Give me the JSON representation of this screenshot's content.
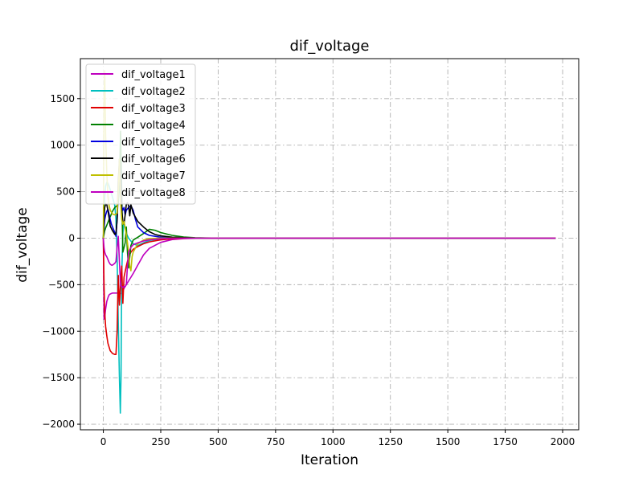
{
  "chart_data": {
    "type": "line",
    "title": "dif_voltage",
    "xlabel": "Iteration",
    "ylabel": "dif_voltage",
    "xlim": [
      -100,
      2070
    ],
    "ylim": [
      -2060,
      1930
    ],
    "xticks": [
      0,
      250,
      500,
      750,
      1000,
      1250,
      1500,
      1750,
      2000
    ],
    "yticks": [
      -2000,
      -1500,
      -1000,
      -500,
      0,
      500,
      1000,
      1500
    ],
    "grid": true,
    "legend_position": "top-left",
    "series": [
      {
        "name": "dif_voltage1",
        "color": "#bf00bf",
        "x": [
          0,
          3,
          6,
          10,
          15,
          20,
          25,
          30,
          40,
          50,
          60,
          70,
          80,
          90,
          100,
          110,
          120,
          130,
          150,
          175,
          200,
          250,
          300,
          350,
          400,
          500,
          600,
          1000,
          1500,
          1970
        ],
        "y": [
          0,
          -870,
          -850,
          -760,
          -680,
          -640,
          -610,
          -600,
          -590,
          -590,
          -590,
          -595,
          -595,
          -540,
          -500,
          -460,
          -420,
          -380,
          -290,
          -180,
          -110,
          -45,
          -15,
          -5,
          -2,
          0,
          0,
          0,
          0,
          0
        ]
      },
      {
        "name": "dif_voltage2",
        "color": "#00bfbf",
        "x": [
          0,
          3,
          6,
          10,
          15,
          20,
          25,
          30,
          40,
          50,
          55,
          60,
          65,
          70,
          74,
          77,
          80,
          85,
          90,
          95,
          100,
          110,
          120,
          130,
          150,
          175,
          200,
          250,
          300,
          350,
          400,
          500,
          1000,
          1500,
          1970
        ],
        "y": [
          0,
          200,
          450,
          560,
          600,
          590,
          560,
          520,
          440,
          350,
          200,
          -200,
          -900,
          -1500,
          -1880,
          -1500,
          -400,
          50,
          180,
          100,
          50,
          0,
          -30,
          -60,
          -80,
          -50,
          -25,
          -8,
          -2,
          0,
          0,
          0,
          0,
          0,
          0
        ]
      },
      {
        "name": "dif_voltage3",
        "color": "#e00000",
        "x": [
          0,
          3,
          6,
          10,
          15,
          20,
          30,
          40,
          50,
          55,
          60,
          65,
          70,
          75,
          80,
          85,
          90,
          95,
          100,
          105,
          110,
          120,
          130,
          150,
          175,
          200,
          250,
          300,
          350,
          400,
          500,
          1000,
          1500,
          1970
        ],
        "y": [
          0,
          -500,
          -800,
          -950,
          -1050,
          -1130,
          -1210,
          -1240,
          -1250,
          -1250,
          -1000,
          -400,
          -720,
          -500,
          -300,
          -700,
          -420,
          -360,
          -300,
          -250,
          -200,
          -150,
          -120,
          -90,
          -60,
          -40,
          -18,
          -7,
          -3,
          0,
          0,
          0,
          0,
          0
        ]
      },
      {
        "name": "dif_voltage4",
        "color": "#008000",
        "x": [
          0,
          3,
          6,
          10,
          15,
          20,
          30,
          40,
          50,
          60,
          65,
          70,
          75,
          80,
          85,
          90,
          95,
          100,
          105,
          110,
          115,
          120,
          130,
          150,
          175,
          200,
          225,
          250,
          300,
          350,
          400,
          500,
          1000,
          1500,
          1970
        ],
        "y": [
          0,
          40,
          80,
          110,
          140,
          170,
          230,
          290,
          330,
          350,
          380,
          550,
          1150,
          500,
          -150,
          -100,
          -50,
          120,
          -150,
          -320,
          -200,
          -80,
          -20,
          10,
          50,
          95,
          85,
          60,
          30,
          12,
          5,
          0,
          0,
          0,
          0
        ]
      },
      {
        "name": "dif_voltage5",
        "color": "#0000e0",
        "x": [
          0,
          3,
          6,
          10,
          15,
          20,
          25,
          30,
          35,
          40,
          50,
          55,
          60,
          65,
          70,
          75,
          80,
          85,
          90,
          95,
          100,
          110,
          120,
          130,
          140,
          150,
          175,
          200,
          250,
          300,
          400,
          500,
          1000,
          1500,
          1970
        ],
        "y": [
          0,
          100,
          200,
          250,
          290,
          310,
          260,
          200,
          150,
          120,
          60,
          20,
          200,
          500,
          830,
          700,
          340,
          300,
          330,
          250,
          300,
          330,
          350,
          300,
          200,
          120,
          60,
          30,
          10,
          5,
          0,
          0,
          0,
          0,
          0
        ]
      },
      {
        "name": "dif_voltage6",
        "color": "#000000",
        "x": [
          0,
          3,
          6,
          10,
          15,
          20,
          25,
          30,
          40,
          50,
          55,
          60,
          65,
          70,
          75,
          80,
          85,
          90,
          95,
          100,
          105,
          110,
          115,
          120,
          130,
          150,
          175,
          200,
          225,
          250,
          300,
          400,
          500,
          1000,
          1500,
          1970
        ],
        "y": [
          0,
          200,
          330,
          370,
          360,
          300,
          220,
          130,
          80,
          40,
          50,
          200,
          600,
          850,
          650,
          300,
          180,
          150,
          250,
          360,
          380,
          350,
          240,
          360,
          270,
          180,
          120,
          70,
          40,
          25,
          10,
          2,
          0,
          0,
          0,
          0
        ]
      },
      {
        "name": "dif_voltage7",
        "color": "#bfbf00",
        "x": [
          0,
          3,
          6,
          10,
          15,
          20,
          25,
          30,
          40,
          50,
          60,
          65,
          70,
          75,
          80,
          85,
          90,
          95,
          100,
          105,
          110,
          115,
          120,
          125,
          130,
          150,
          175,
          200,
          250,
          300,
          400,
          500,
          1000,
          1500,
          1970
        ],
        "y": [
          0,
          1500,
          1800,
          1100,
          700,
          450,
          350,
          300,
          260,
          250,
          270,
          500,
          850,
          400,
          200,
          150,
          180,
          110,
          40,
          -50,
          -150,
          -300,
          -350,
          -200,
          -150,
          -60,
          -20,
          -5,
          0,
          0,
          0,
          0,
          0,
          0,
          0
        ]
      },
      {
        "name": "dif_voltage8",
        "color": "#bf00bf",
        "x": [
          0,
          3,
          6,
          10,
          15,
          20,
          25,
          30,
          35,
          40,
          50,
          55,
          60,
          65,
          70,
          75,
          80,
          85,
          90,
          95,
          100,
          105,
          110,
          120,
          130,
          150,
          175,
          200,
          250,
          300,
          400,
          500,
          1000,
          1500,
          1970
        ],
        "y": [
          0,
          -100,
          -150,
          -180,
          -200,
          -230,
          -260,
          -280,
          -290,
          -290,
          -270,
          -250,
          -100,
          20,
          -250,
          -510,
          -520,
          -530,
          -520,
          -520,
          -500,
          -300,
          -150,
          -100,
          -70,
          -50,
          -30,
          -18,
          -6,
          -2,
          0,
          0,
          0,
          0,
          0
        ]
      }
    ]
  }
}
